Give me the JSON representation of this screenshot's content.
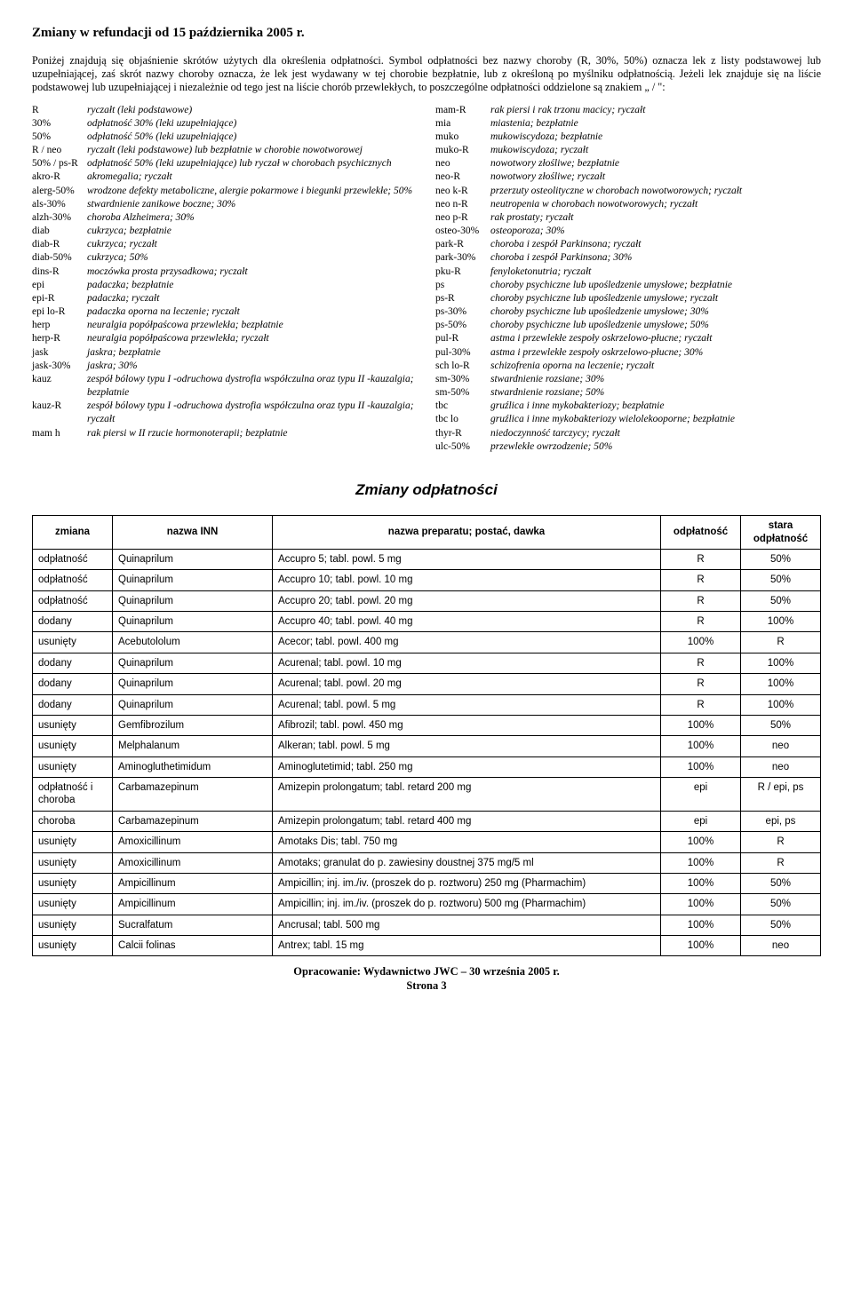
{
  "title": "Zmiany w refundacji od 15 października 2005 r.",
  "intro": "Poniżej znajdują się objaśnienie skrótów użytych dla określenia odpłatności. Symbol odpłatności bez nazwy choroby (R, 30%, 50%) oznacza lek z listy podstawowej lub uzupełniającej, zaś skrót nazwy choroby oznacza, że lek jest wydawany w tej chorobie bezpłatnie, lub z określoną po myślniku odpłatnością. Jeżeli lek znajduje się na liście podstawowej lub uzupełniającej i niezależnie od tego jest na liście chorób przewlekłych, to poszczególne odpłatności oddzielone są znakiem „ / \":",
  "abbr_left": [
    {
      "k": "R",
      "v": "ryczałt (leki podstawowe)"
    },
    {
      "k": "30%",
      "v": "odpłatność 30% (leki uzupełniające)"
    },
    {
      "k": "50%",
      "v": "odpłatność 50% (leki uzupełniające)"
    },
    {
      "k": "R / neo",
      "v": "ryczałt (leki podstawowe) lub bezpłatnie w chorobie nowotworowej"
    },
    {
      "k": "50% / ps-R",
      "v": "odpłatność 50% (leki uzupełniające) lub ryczał w chorobach psychicznych"
    },
    {
      "k": "akro-R",
      "v": "akromegalia; ryczałt"
    },
    {
      "k": "alerg-50%",
      "v": "wrodzone defekty metaboliczne, alergie pokarmowe i biegunki przewlekłe; 50%"
    },
    {
      "k": "als-30%",
      "v": "stwardnienie zanikowe boczne; 30%"
    },
    {
      "k": "alzh-30%",
      "v": "choroba Alzheimera; 30%"
    },
    {
      "k": "diab",
      "v": "cukrzyca; bezpłatnie"
    },
    {
      "k": "diab-R",
      "v": "cukrzyca; ryczałt"
    },
    {
      "k": "diab-50%",
      "v": "cukrzyca; 50%"
    },
    {
      "k": "dins-R",
      "v": "moczówka prosta przysadkowa; ryczałt"
    },
    {
      "k": "epi",
      "v": "padaczka; bezpłatnie"
    },
    {
      "k": "epi-R",
      "v": "padaczka; ryczałt"
    },
    {
      "k": "epi lo-R",
      "v": "padaczka oporna na leczenie; ryczałt"
    },
    {
      "k": "herp",
      "v": "neuralgia popółpaścowa przewlekła; bezpłatnie"
    },
    {
      "k": "herp-R",
      "v": "neuralgia popółpaścowa przewlekła; ryczałt"
    },
    {
      "k": "jask",
      "v": "jaskra; bezpłatnie"
    },
    {
      "k": "jask-30%",
      "v": "jaskra; 30%"
    },
    {
      "k": "kauz",
      "v": "zespół bólowy typu I -odruchowa dystrofia współczulna oraz typu II -kauzalgia; bezpłatnie"
    },
    {
      "k": "kauz-R",
      "v": "zespół bólowy typu I -odruchowa dystrofia współczulna oraz typu II -kauzalgia; ryczałt"
    },
    {
      "k": "mam h",
      "v": "rak piersi w II rzucie hormonoterapii; bezpłatnie"
    }
  ],
  "abbr_right": [
    {
      "k": "mam-R",
      "v": "rak piersi i rak trzonu macicy; ryczałt"
    },
    {
      "k": "mia",
      "v": "miastenia; bezpłatnie"
    },
    {
      "k": "muko",
      "v": "mukowiscydoza; bezpłatnie"
    },
    {
      "k": "muko-R",
      "v": "mukowiscydoza; ryczałt"
    },
    {
      "k": "neo",
      "v": "nowotwory złośliwe; bezpłatnie"
    },
    {
      "k": "neo-R",
      "v": "nowotwory złośliwe; ryczałt"
    },
    {
      "k": "neo k-R",
      "v": "przerzuty osteolityczne w chorobach nowotworowych; ryczałt"
    },
    {
      "k": "neo n-R",
      "v": "neutropenia w chorobach nowotworowych; ryczałt"
    },
    {
      "k": "neo p-R",
      "v": "rak prostaty; ryczałt"
    },
    {
      "k": "osteo-30%",
      "v": "osteoporoza; 30%"
    },
    {
      "k": "park-R",
      "v": "choroba i zespół Parkinsona; ryczałt"
    },
    {
      "k": "park-30%",
      "v": "choroba i zespół Parkinsona; 30%"
    },
    {
      "k": "pku-R",
      "v": "fenyloketonutria; ryczałt"
    },
    {
      "k": "ps",
      "v": "choroby psychiczne lub upośledzenie umysłowe; bezpłatnie"
    },
    {
      "k": "ps-R",
      "v": "choroby psychiczne lub upośledzenie umysłowe; ryczałt"
    },
    {
      "k": "ps-30%",
      "v": "choroby psychiczne lub upośledzenie umysłowe; 30%"
    },
    {
      "k": "ps-50%",
      "v": "choroby psychiczne lub upośledzenie umysłowe; 50%"
    },
    {
      "k": "pul-R",
      "v": "astma i przewlekłe zespoły oskrzelowo-płucne; ryczałt"
    },
    {
      "k": "pul-30%",
      "v": "astma i przewlekłe zespoły oskrzelowo-płucne; 30%"
    },
    {
      "k": "sch lo-R",
      "v": "schizofrenia oporna na leczenie; ryczałt"
    },
    {
      "k": "sm-30%",
      "v": "stwardnienie rozsiane; 30%"
    },
    {
      "k": "sm-50%",
      "v": "stwardnienie rozsiane; 50%"
    },
    {
      "k": "tbc",
      "v": "gruźlica i inne mykobakteriozy; bezpłatnie"
    },
    {
      "k": "tbc lo",
      "v": "gruźlica i inne mykobakteriozy wielolekooporne; bezpłatnie"
    },
    {
      "k": "thyr-R",
      "v": "niedoczynność tarczycy; ryczałt"
    },
    {
      "k": "ulc-50%",
      "v": "przewlekłe owrzodzenie; 50%"
    }
  ],
  "section_title": "Zmiany odpłatności",
  "table": {
    "columns": [
      "zmiana",
      "nazwa INN",
      "nazwa preparatu; postać, dawka",
      "odpłatność",
      "stara odpłatność"
    ],
    "rows": [
      [
        "odpłatność",
        "Quinaprilum",
        "Accupro  5; tabl. powl. 5 mg",
        "R",
        "50%"
      ],
      [
        "odpłatność",
        "Quinaprilum",
        "Accupro 10; tabl. powl. 10 mg",
        "R",
        "50%"
      ],
      [
        "odpłatność",
        "Quinaprilum",
        "Accupro 20; tabl. powl. 20 mg",
        "R",
        "50%"
      ],
      [
        "dodany",
        "Quinaprilum",
        "Accupro 40; tabl. powl. 40 mg",
        "R",
        "100%"
      ],
      [
        "usunięty",
        "Acebutololum",
        "Acecor; tabl. powl. 400 mg",
        "100%",
        "R"
      ],
      [
        "dodany",
        "Quinaprilum",
        "Acurenal; tabl. powl. 10 mg",
        "R",
        "100%"
      ],
      [
        "dodany",
        "Quinaprilum",
        "Acurenal; tabl. powl. 20 mg",
        "R",
        "100%"
      ],
      [
        "dodany",
        "Quinaprilum",
        "Acurenal; tabl. powl. 5 mg",
        "R",
        "100%"
      ],
      [
        "usunięty",
        "Gemfibrozilum",
        "Afibrozil; tabl. powl. 450 mg",
        "100%",
        "50%"
      ],
      [
        "usunięty",
        "Melphalanum",
        "Alkeran; tabl. powl. 5 mg",
        "100%",
        "neo"
      ],
      [
        "usunięty",
        "Aminogluthetimidum",
        "Aminoglutetimid; tabl. 250 mg",
        "100%",
        "neo"
      ],
      [
        "odpłatność i choroba",
        "Carbamazepinum",
        "Amizepin prolongatum; tabl. retard 200 mg",
        "epi",
        "R / epi, ps"
      ],
      [
        "choroba",
        "Carbamazepinum",
        "Amizepin prolongatum; tabl. retard 400 mg",
        "epi",
        "epi, ps"
      ],
      [
        "usunięty",
        "Amoxicillinum",
        "Amotaks Dis; tabl. 750 mg",
        "100%",
        "R"
      ],
      [
        "usunięty",
        "Amoxicillinum",
        "Amotaks; granulat do p. zawiesiny doustnej 375 mg/5 ml",
        "100%",
        "R"
      ],
      [
        "usunięty",
        "Ampicillinum",
        "Ampicillin; inj. im./iv. (proszek do p. roztworu) 250 mg (Pharmachim)",
        "100%",
        "50%"
      ],
      [
        "usunięty",
        "Ampicillinum",
        "Ampicillin; inj. im./iv. (proszek do p. roztworu) 500 mg (Pharmachim)",
        "100%",
        "50%"
      ],
      [
        "usunięty",
        "Sucralfatum",
        "Ancrusal; tabl. 500 mg",
        "100%",
        "50%"
      ],
      [
        "usunięty",
        "Calcii folinas",
        "Antrex; tabl. 15 mg",
        "100%",
        "neo"
      ]
    ]
  },
  "footer1": "Opracowanie: Wydawnictwo JWC – 30 września 2005 r.",
  "footer2": "Strona 3"
}
